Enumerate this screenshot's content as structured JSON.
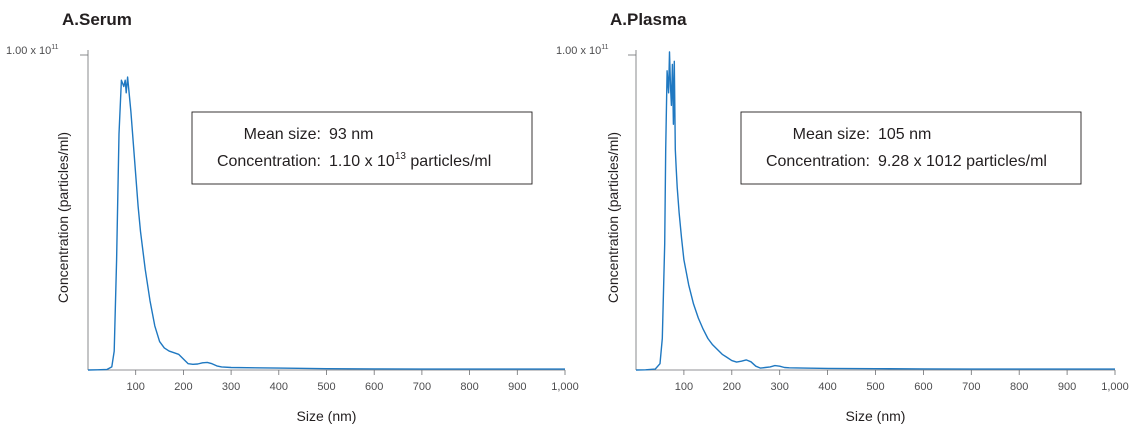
{
  "chart_data": [
    {
      "type": "line",
      "title": "A.Serum",
      "xlabel": "Size (nm)",
      "ylabel": "Concentration (particles/ml)",
      "xlim": [
        0,
        1000
      ],
      "ylim": [
        0,
        100000000000.0
      ],
      "ytick_label": {
        "mantissa": "1.00 x 10",
        "exponent": "11"
      },
      "xtick_labels": [
        "100",
        "200",
        "300",
        "400",
        "500",
        "600",
        "700",
        "800",
        "900",
        "1,000"
      ],
      "xticks": [
        100,
        200,
        300,
        400,
        500,
        600,
        700,
        800,
        900,
        1000
      ],
      "annotation": {
        "mean_label": "Mean size:",
        "mean_value": "93 nm",
        "conc_label": "Concentration:",
        "conc_value": "1.10 x 10",
        "conc_exp": "13",
        "conc_unit": " particles/ml"
      },
      "series": [
        {
          "color": "#1f78c1",
          "x": [
            0,
            20,
            40,
            50,
            55,
            60,
            65,
            70,
            75,
            78,
            80,
            83,
            85,
            90,
            95,
            100,
            105,
            110,
            120,
            130,
            140,
            150,
            160,
            170,
            180,
            190,
            200,
            210,
            220,
            230,
            240,
            250,
            260,
            270,
            280,
            300,
            400,
            500,
            600,
            700,
            800,
            900,
            1000
          ],
          "y": [
            0.0,
            0.05,
            0.2,
            1.0,
            6.0,
            35.0,
            75.0,
            92.0,
            90.0,
            92.0,
            88.0,
            93.0,
            90.0,
            82.0,
            72.0,
            62.0,
            52.0,
            44.0,
            32.0,
            22.0,
            14.0,
            9.0,
            7.0,
            6.0,
            5.5,
            5.0,
            3.5,
            2.0,
            1.8,
            1.9,
            2.3,
            2.4,
            2.0,
            1.3,
            1.0,
            0.8,
            0.6,
            0.4,
            0.35,
            0.3,
            0.3,
            0.3,
            0.3
          ]
        }
      ]
    },
    {
      "type": "line",
      "title": "A.Plasma",
      "xlabel": "Size (nm)",
      "ylabel": "Concentration (particles/ml)",
      "xlim": [
        0,
        1000
      ],
      "ylim": [
        0,
        100000000000.0
      ],
      "ytick_label": {
        "mantissa": "1.00 x 10",
        "exponent": "11"
      },
      "xtick_labels": [
        "100",
        "200",
        "300",
        "400",
        "500",
        "600",
        "700",
        "800",
        "900",
        "1,000"
      ],
      "xticks": [
        100,
        200,
        300,
        400,
        500,
        600,
        700,
        800,
        900,
        1000
      ],
      "annotation": {
        "mean_label": "Mean size:",
        "mean_value": "105 nm",
        "conc_label": "Concentration:",
        "conc_value": "9.28 x 1012 particles/ml",
        "conc_exp": "",
        "conc_unit": ""
      },
      "series": [
        {
          "color": "#1f78c1",
          "x": [
            0,
            20,
            40,
            50,
            55,
            60,
            62,
            65,
            68,
            70,
            72,
            74,
            76,
            78,
            80,
            82,
            84,
            86,
            90,
            95,
            100,
            110,
            120,
            130,
            140,
            150,
            160,
            170,
            180,
            190,
            200,
            210,
            220,
            230,
            240,
            250,
            260,
            270,
            280,
            290,
            300,
            310,
            320,
            350,
            400,
            500,
            600,
            700,
            800,
            900,
            1000
          ],
          "y": [
            0.0,
            0.05,
            0.3,
            2.0,
            10.0,
            40.0,
            70.0,
            95.0,
            88.0,
            101.0,
            90.0,
            84.0,
            97.0,
            78.0,
            98.0,
            70.0,
            64.0,
            58.0,
            50.0,
            42.0,
            35.0,
            27.0,
            21.0,
            16.5,
            13.0,
            10.0,
            8.0,
            6.5,
            5.0,
            4.0,
            3.0,
            2.5,
            2.8,
            3.2,
            2.6,
            1.2,
            0.6,
            0.8,
            1.0,
            1.4,
            1.2,
            0.8,
            0.7,
            0.6,
            0.5,
            0.4,
            0.35,
            0.3,
            0.3,
            0.3,
            0.3
          ]
        }
      ]
    }
  ]
}
